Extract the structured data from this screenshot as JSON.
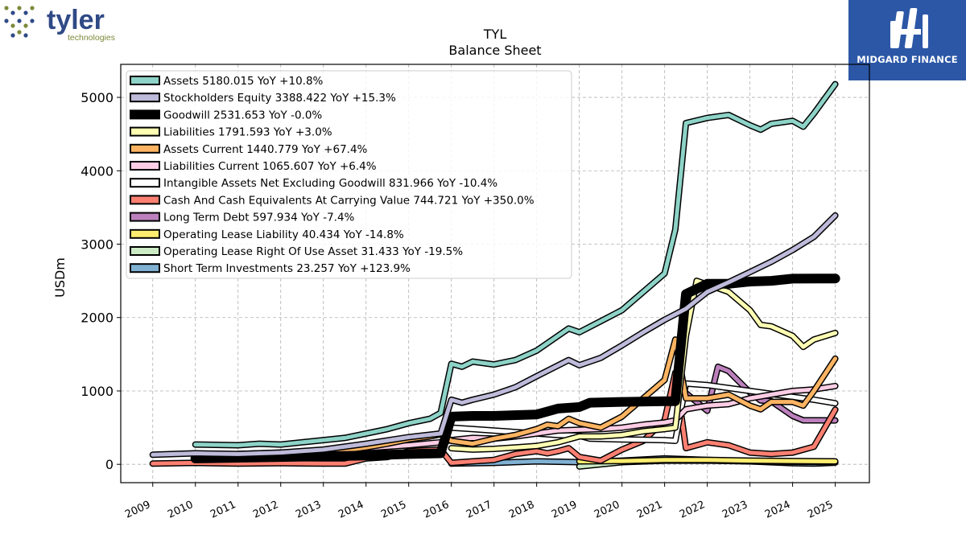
{
  "logos": {
    "left_wordmark": "tyler",
    "left_sub": "technologies",
    "right_brand": "MIDGARD FINANCE"
  },
  "chart_data": {
    "type": "line",
    "title": "TYL",
    "subtitle": "Balance  Sheet",
    "xlabel": "",
    "ylabel": "USDm",
    "xlim": [
      2008.25,
      2025.8
    ],
    "ylim": [
      -250,
      5450
    ],
    "yticks": [
      0,
      1000,
      2000,
      3000,
      4000,
      5000
    ],
    "xticks": [
      "2009",
      "2010",
      "2011",
      "2012",
      "2013",
      "2014",
      "2015",
      "2016",
      "2017",
      "2018",
      "2019",
      "2020",
      "2021",
      "2022",
      "2023",
      "2024",
      "2025"
    ],
    "grid": true,
    "legend_position": "top-left",
    "series": [
      {
        "name": "Assets",
        "legend": "Assets  5180.015 YoY +10.8%",
        "color": "#8dd3c7",
        "width": 5,
        "points": [
          [
            2010,
            270
          ],
          [
            2011,
            260
          ],
          [
            2011.5,
            280
          ],
          [
            2012,
            270
          ],
          [
            2012.5,
            300
          ],
          [
            2013,
            330
          ],
          [
            2013.5,
            360
          ],
          [
            2014,
            420
          ],
          [
            2014.5,
            480
          ],
          [
            2015,
            560
          ],
          [
            2015.5,
            620
          ],
          [
            2015.75,
            700
          ],
          [
            2016,
            1370
          ],
          [
            2016.25,
            1330
          ],
          [
            2016.5,
            1400
          ],
          [
            2017,
            1360
          ],
          [
            2017.5,
            1420
          ],
          [
            2018,
            1550
          ],
          [
            2018.5,
            1750
          ],
          [
            2018.75,
            1850
          ],
          [
            2019,
            1800
          ],
          [
            2019.5,
            1950
          ],
          [
            2020,
            2100
          ],
          [
            2020.5,
            2350
          ],
          [
            2021,
            2600
          ],
          [
            2021.25,
            3200
          ],
          [
            2021.5,
            4650
          ],
          [
            2022,
            4720
          ],
          [
            2022.5,
            4760
          ],
          [
            2023,
            4620
          ],
          [
            2023.25,
            4560
          ],
          [
            2023.5,
            4640
          ],
          [
            2024,
            4680
          ],
          [
            2024.25,
            4600
          ],
          [
            2024.5,
            4780
          ],
          [
            2025,
            5180
          ]
        ]
      },
      {
        "name": "Stockholders Equity",
        "legend": "Stockholders Equity  3388.422 YoY +15.3%",
        "color": "#bebada",
        "width": 5,
        "points": [
          [
            2009,
            130
          ],
          [
            2010,
            150
          ],
          [
            2011,
            140
          ],
          [
            2012,
            160
          ],
          [
            2013,
            200
          ],
          [
            2014,
            280
          ],
          [
            2015,
            370
          ],
          [
            2015.75,
            420
          ],
          [
            2016,
            880
          ],
          [
            2016.25,
            840
          ],
          [
            2016.5,
            880
          ],
          [
            2017,
            950
          ],
          [
            2017.5,
            1050
          ],
          [
            2018,
            1200
          ],
          [
            2018.75,
            1420
          ],
          [
            2019,
            1350
          ],
          [
            2019.5,
            1450
          ],
          [
            2020,
            1620
          ],
          [
            2020.5,
            1800
          ],
          [
            2021,
            1970
          ],
          [
            2021.5,
            2120
          ],
          [
            2022,
            2350
          ],
          [
            2022.5,
            2480
          ],
          [
            2023,
            2620
          ],
          [
            2023.5,
            2760
          ],
          [
            2024,
            2920
          ],
          [
            2024.5,
            3100
          ],
          [
            2025,
            3390
          ]
        ]
      },
      {
        "name": "Goodwill",
        "legend": "Goodwill  2531.653 YoY -0.0%",
        "color": "#000000",
        "width": 9,
        "points": [
          [
            2010,
            80
          ],
          [
            2011,
            90
          ],
          [
            2012,
            100
          ],
          [
            2013,
            110
          ],
          [
            2014,
            120
          ],
          [
            2015,
            140
          ],
          [
            2015.75,
            150
          ],
          [
            2016,
            650
          ],
          [
            2016.5,
            660
          ],
          [
            2017,
            660
          ],
          [
            2018,
            680
          ],
          [
            2018.5,
            760
          ],
          [
            2019,
            780
          ],
          [
            2019.25,
            840
          ],
          [
            2020,
            850
          ],
          [
            2021,
            860
          ],
          [
            2021.25,
            860
          ],
          [
            2021.5,
            2320
          ],
          [
            2022,
            2460
          ],
          [
            2022.5,
            2460
          ],
          [
            2023,
            2490
          ],
          [
            2023.5,
            2500
          ],
          [
            2024,
            2530
          ],
          [
            2025,
            2532
          ]
        ]
      },
      {
        "name": "Liabilities",
        "legend": "Liabilities  1791.593 YoY +3.0%",
        "color": "#ffffb3",
        "width": 5,
        "points": [
          [
            2016,
            220
          ],
          [
            2016.5,
            200
          ],
          [
            2017,
            210
          ],
          [
            2017.5,
            230
          ],
          [
            2018,
            250
          ],
          [
            2018.5,
            300
          ],
          [
            2019,
            380
          ],
          [
            2019.5,
            380
          ],
          [
            2020,
            400
          ],
          [
            2020.5,
            450
          ],
          [
            2021,
            480
          ],
          [
            2021.25,
            500
          ],
          [
            2021.5,
            1750
          ],
          [
            2021.75,
            2500
          ],
          [
            2022,
            2450
          ],
          [
            2022.5,
            2350
          ],
          [
            2023,
            2100
          ],
          [
            2023.25,
            1900
          ],
          [
            2023.5,
            1880
          ],
          [
            2024,
            1750
          ],
          [
            2024.25,
            1600
          ],
          [
            2024.5,
            1700
          ],
          [
            2025,
            1790
          ]
        ]
      },
      {
        "name": "Assets Current",
        "legend": "Assets Current  1440.779 YoY +67.4%",
        "color": "#fdb462",
        "width": 5,
        "points": [
          [
            2013,
            150
          ],
          [
            2014,
            230
          ],
          [
            2014.5,
            280
          ],
          [
            2015,
            340
          ],
          [
            2015.5,
            380
          ],
          [
            2015.75,
            410
          ],
          [
            2016,
            320
          ],
          [
            2016.5,
            280
          ],
          [
            2017,
            350
          ],
          [
            2017.5,
            400
          ],
          [
            2018,
            480
          ],
          [
            2018.25,
            540
          ],
          [
            2018.5,
            520
          ],
          [
            2018.75,
            620
          ],
          [
            2019,
            560
          ],
          [
            2019.5,
            500
          ],
          [
            2020,
            650
          ],
          [
            2020.5,
            900
          ],
          [
            2021,
            1150
          ],
          [
            2021.25,
            1700
          ],
          [
            2021.5,
            900
          ],
          [
            2022,
            900
          ],
          [
            2022.5,
            950
          ],
          [
            2023,
            800
          ],
          [
            2023.25,
            750
          ],
          [
            2023.5,
            850
          ],
          [
            2024,
            850
          ],
          [
            2024.25,
            800
          ],
          [
            2024.5,
            1000
          ],
          [
            2025,
            1440
          ]
        ]
      },
      {
        "name": "Liabilities Current",
        "legend": "Liabilities Current  1065.607 YoY +6.4%",
        "color": "#fccde5",
        "width": 5,
        "points": [
          [
            2011,
            140
          ],
          [
            2012,
            160
          ],
          [
            2013,
            180
          ],
          [
            2014,
            220
          ],
          [
            2015,
            260
          ],
          [
            2015.75,
            300
          ],
          [
            2016,
            330
          ],
          [
            2016.5,
            360
          ],
          [
            2017,
            350
          ],
          [
            2017.5,
            380
          ],
          [
            2018,
            420
          ],
          [
            2018.5,
            460
          ],
          [
            2019,
            470
          ],
          [
            2019.5,
            480
          ],
          [
            2020,
            500
          ],
          [
            2020.5,
            540
          ],
          [
            2021,
            570
          ],
          [
            2021.25,
            600
          ],
          [
            2021.5,
            750
          ],
          [
            2022,
            800
          ],
          [
            2022.5,
            820
          ],
          [
            2023,
            900
          ],
          [
            2023.5,
            950
          ],
          [
            2024,
            1000
          ],
          [
            2024.5,
            1020
          ],
          [
            2025,
            1066
          ]
        ]
      },
      {
        "name": "Intangible Assets Net Excluding Goodwill",
        "legend": "Intangible Assets Net Excluding Goodwill  831.966 YoY -10.4%",
        "color": "#ffffff",
        "width": 5,
        "points": [
          [
            2016,
            500
          ],
          [
            2016.5,
            480
          ],
          [
            2017,
            460
          ],
          [
            2017.5,
            440
          ],
          [
            2018,
            420
          ],
          [
            2018.5,
            400
          ],
          [
            2019,
            390
          ],
          [
            2019.25,
            350
          ],
          [
            2020,
            340
          ],
          [
            2021,
            330
          ],
          [
            2021.25,
            320
          ],
          [
            2021.5,
            1100
          ],
          [
            2022,
            1080
          ],
          [
            2022.5,
            1040
          ],
          [
            2023,
            1000
          ],
          [
            2023.5,
            960
          ],
          [
            2024,
            920
          ],
          [
            2024.5,
            880
          ],
          [
            2025,
            832
          ]
        ]
      },
      {
        "name": "Cash And Cash Equivalents At Carrying Value",
        "legend": "Cash And Cash Equivalents At Carrying Value  744.721 YoY +350.0%",
        "color": "#fb8072",
        "width": 5,
        "points": [
          [
            2009,
            10
          ],
          [
            2010,
            20
          ],
          [
            2011,
            10
          ],
          [
            2012,
            15
          ],
          [
            2013,
            10
          ],
          [
            2013.5,
            10
          ],
          [
            2014,
            80
          ],
          [
            2014.5,
            100
          ],
          [
            2015,
            180
          ],
          [
            2015.75,
            200
          ],
          [
            2016,
            20
          ],
          [
            2016.5,
            40
          ],
          [
            2017,
            60
          ],
          [
            2017.5,
            140
          ],
          [
            2018,
            180
          ],
          [
            2018.25,
            150
          ],
          [
            2018.5,
            180
          ],
          [
            2018.75,
            220
          ],
          [
            2019,
            100
          ],
          [
            2019.5,
            50
          ],
          [
            2020,
            200
          ],
          [
            2020.5,
            320
          ],
          [
            2021,
            600
          ],
          [
            2021.25,
            1250
          ],
          [
            2021.5,
            220
          ],
          [
            2022,
            300
          ],
          [
            2022.5,
            260
          ],
          [
            2023,
            160
          ],
          [
            2023.5,
            140
          ],
          [
            2024,
            160
          ],
          [
            2024.5,
            240
          ],
          [
            2025,
            745
          ]
        ]
      },
      {
        "name": "Long Term Debt",
        "legend": "Long Term Debt  597.934 YoY -7.4%",
        "color": "#bc80bd",
        "width": 5,
        "points": [
          [
            2021.5,
            970
          ],
          [
            2022,
            730
          ],
          [
            2022.25,
            1330
          ],
          [
            2022.5,
            1270
          ],
          [
            2023,
            980
          ],
          [
            2023.25,
            870
          ],
          [
            2023.5,
            860
          ],
          [
            2024,
            660
          ],
          [
            2024.25,
            600
          ],
          [
            2025,
            598
          ]
        ]
      },
      {
        "name": "Operating Lease Liability",
        "legend": "Operating Lease Liability  40.434 YoY -14.8%",
        "color": "#ffed6f",
        "width": 5,
        "points": [
          [
            2019,
            40
          ],
          [
            2020,
            45
          ],
          [
            2021,
            60
          ],
          [
            2022,
            60
          ],
          [
            2023,
            50
          ],
          [
            2024,
            45
          ],
          [
            2025,
            40
          ]
        ]
      },
      {
        "name": "Operating Lease Right Of Use Asset",
        "legend": "Operating Lease Right Of Use Asset  31.433 YoY -19.5%",
        "color": "#ccebc5",
        "width": 5,
        "points": [
          [
            2019,
            -30
          ],
          [
            2020,
            30
          ],
          [
            2021,
            50
          ],
          [
            2022,
            50
          ],
          [
            2023,
            40
          ],
          [
            2024,
            35
          ],
          [
            2025,
            31
          ]
        ]
      },
      {
        "name": "Short Term Investments",
        "legend": "Short Term Investments  23.257 YoY +123.9%",
        "color": "#80b1d3",
        "width": 5,
        "points": [
          [
            2016,
            10
          ],
          [
            2017,
            20
          ],
          [
            2018,
            40
          ],
          [
            2019,
            30
          ],
          [
            2020,
            50
          ],
          [
            2021,
            80
          ],
          [
            2022,
            60
          ],
          [
            2023,
            40
          ],
          [
            2024,
            15
          ],
          [
            2024.5,
            10
          ],
          [
            2025,
            23
          ]
        ]
      }
    ]
  }
}
